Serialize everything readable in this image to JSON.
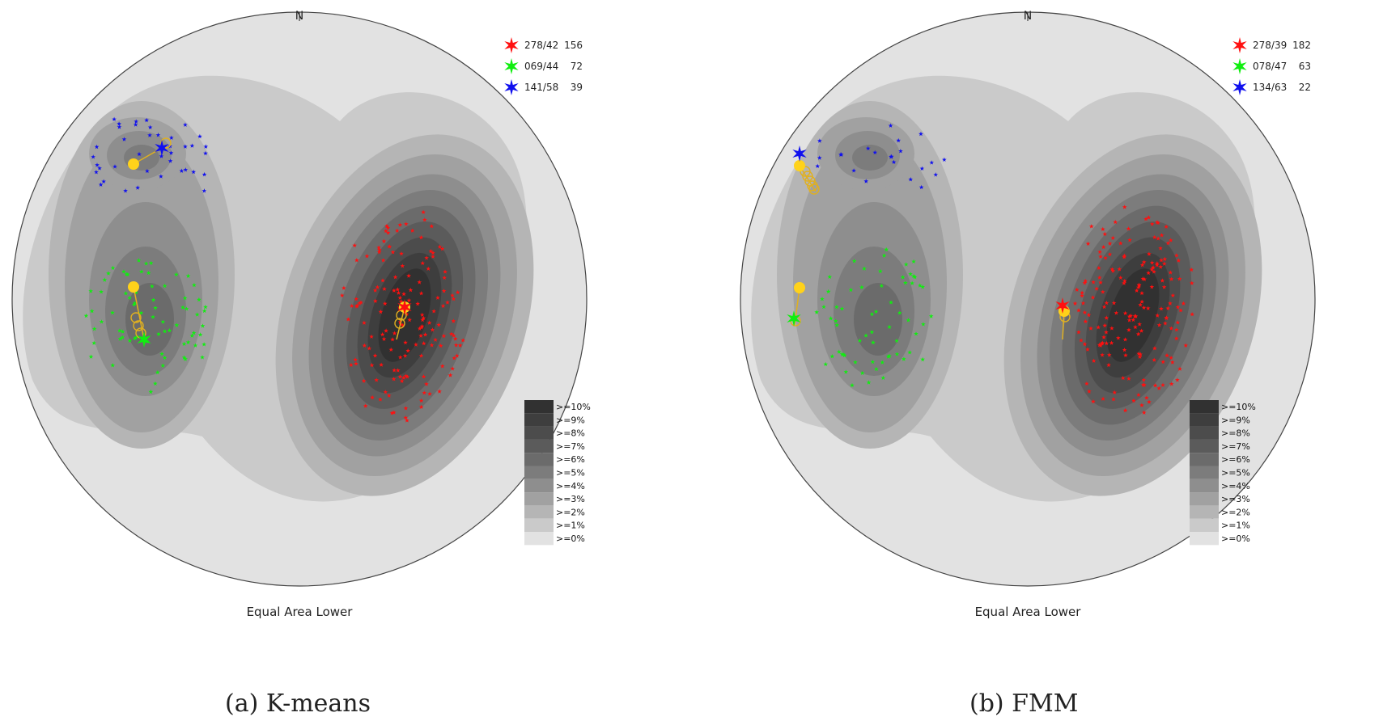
{
  "panels": [
    {
      "north_label": "N",
      "projection_label": "Equal Area Lower",
      "caption_prefix": "(a)",
      "caption": "K-means",
      "legend": [
        {
          "orientation": "278/42",
          "count": "156",
          "color": "#ff1010",
          "icon": "red-star-icon"
        },
        {
          "orientation": "069/44",
          "count": "72",
          "color": "#10ee10",
          "icon": "green-star-icon"
        },
        {
          "orientation": "141/58",
          "count": "39",
          "color": "#1010ee",
          "icon": "blue-star-icon"
        }
      ]
    },
    {
      "north_label": "N",
      "projection_label": "Equal Area Lower",
      "caption_prefix": "(b)",
      "caption": "FMM",
      "legend": [
        {
          "orientation": "278/39",
          "count": "182",
          "color": "#ff1010",
          "icon": "red-star-icon"
        },
        {
          "orientation": "078/47",
          "count": "63",
          "color": "#10ee10",
          "icon": "green-star-icon"
        },
        {
          "orientation": "134/63",
          "count": "22",
          "color": "#1010ee",
          "icon": "blue-star-icon"
        }
      ]
    }
  ],
  "contour_scale": [
    ">=10%",
    ">=9%",
    ">=8%",
    ">=7%",
    ">=6%",
    ">=5%",
    ">=4%",
    ">=3%",
    ">=2%",
    ">=1%",
    ">=0%"
  ],
  "contour_colors": [
    "#313131",
    "#3e3e3e",
    "#4c4c4c",
    "#5b5b5b",
    "#6b6b6b",
    "#7c7c7c",
    "#8e8e8e",
    "#a1a1a1",
    "#b5b5b5",
    "#cacaca",
    "#e2e2e2"
  ],
  "colors": {
    "centroid": "#ffd21a",
    "track": "#e0b020"
  }
}
